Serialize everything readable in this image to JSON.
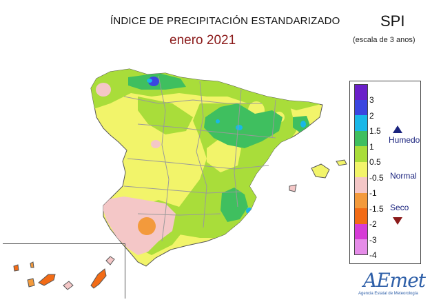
{
  "header": {
    "title": "ÍNDICE DE PRECIPITACIÓN ESTANDARIZADO",
    "subtitle": "enero 2021",
    "index_name": "SPI",
    "scale_note": "(escala de 3 anos)"
  },
  "legend": {
    "ticks": [
      "3",
      "2",
      "1.5",
      "1",
      "0.5",
      "-0.5",
      "-1",
      "-1.5",
      "-2",
      "-3",
      "-4"
    ],
    "colors": [
      "#6a1fc9",
      "#3a46e0",
      "#19b7e8",
      "#3fbf5f",
      "#a9dd3a",
      "#f2f46a",
      "#f4c7c7",
      "#f39a3c",
      "#f26b16",
      "#d63cd6",
      "#e58ce8"
    ],
    "categories": {
      "wet": "Humedo",
      "normal": "Normal",
      "dry": "Seco"
    }
  },
  "logo": {
    "name": "AEmet",
    "tagline": "Agencia Estatal de Meteorología"
  }
}
